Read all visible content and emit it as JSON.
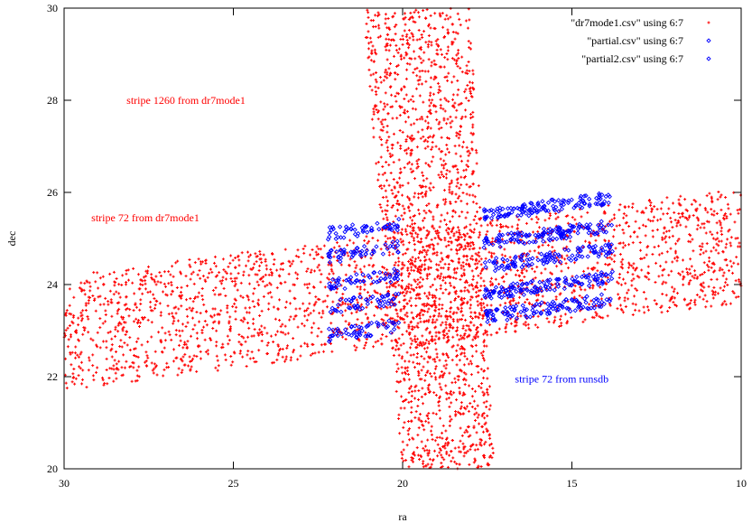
{
  "chart_data": {
    "type": "scatter",
    "title": "",
    "xlabel": "ra",
    "ylabel": "dec",
    "xlim": [
      30,
      10
    ],
    "ylim": [
      20,
      30
    ],
    "x_reversed": true,
    "xticks": [
      30,
      25,
      20,
      15,
      10
    ],
    "yticks": [
      20,
      22,
      24,
      26,
      28,
      30
    ],
    "grid": false,
    "legend_position": "top-right",
    "series": [
      {
        "name": "\"dr7mode1.csv\" using 6:7",
        "color": "#ff0000",
        "marker": "plus",
        "regions": [
          {
            "shape": "band",
            "x_from": 30,
            "x_to": 10,
            "dec_lower_at_x_from": 21.7,
            "dec_upper_at_x_from": 24.2,
            "dec_lower_at_x_to": 23.6,
            "dec_upper_at_x_to": 26.1,
            "count": 2300
          },
          {
            "shape": "band_vertical",
            "y_from": 20,
            "y_to": 30,
            "ra_left_at_y_from": 20.0,
            "ra_right_at_y_from": 17.3,
            "ra_left_at_y_to": 21.2,
            "ra_right_at_y_to": 18.0,
            "count": 1700
          }
        ]
      },
      {
        "name": "\"partial.csv\" using 6:7",
        "color": "#0000ff",
        "marker": "diamond",
        "regions": [
          {
            "shape": "stripes",
            "x_from": 22.2,
            "x_to": 20.1,
            "dec_centers_at_x_from": [
              22.9,
              23.5,
              24.0,
              24.6,
              25.1
            ],
            "slope_per_ra": -0.1,
            "count": 260
          }
        ]
      },
      {
        "name": "\"partial2.csv\" using 6:7",
        "color": "#0000ff",
        "marker": "diamond",
        "regions": [
          {
            "shape": "stripes",
            "x_from": 17.6,
            "x_to": 13.8,
            "dec_centers_at_x_from": [
              23.3,
              23.8,
              24.4,
              24.9,
              25.5
            ],
            "slope_per_ra": -0.1,
            "count": 620
          }
        ]
      }
    ],
    "annotations": [
      {
        "text": "stripe 1260 from dr7mode1",
        "x": 26.4,
        "y": 28.0,
        "color": "#ff0000"
      },
      {
        "text": "stripe 72 from dr7mode1",
        "x": 27.6,
        "y": 25.45,
        "color": "#ff0000"
      },
      {
        "text": "stripe 72 from runsdb",
        "x": 15.3,
        "y": 21.95,
        "color": "#0000ff"
      }
    ]
  }
}
